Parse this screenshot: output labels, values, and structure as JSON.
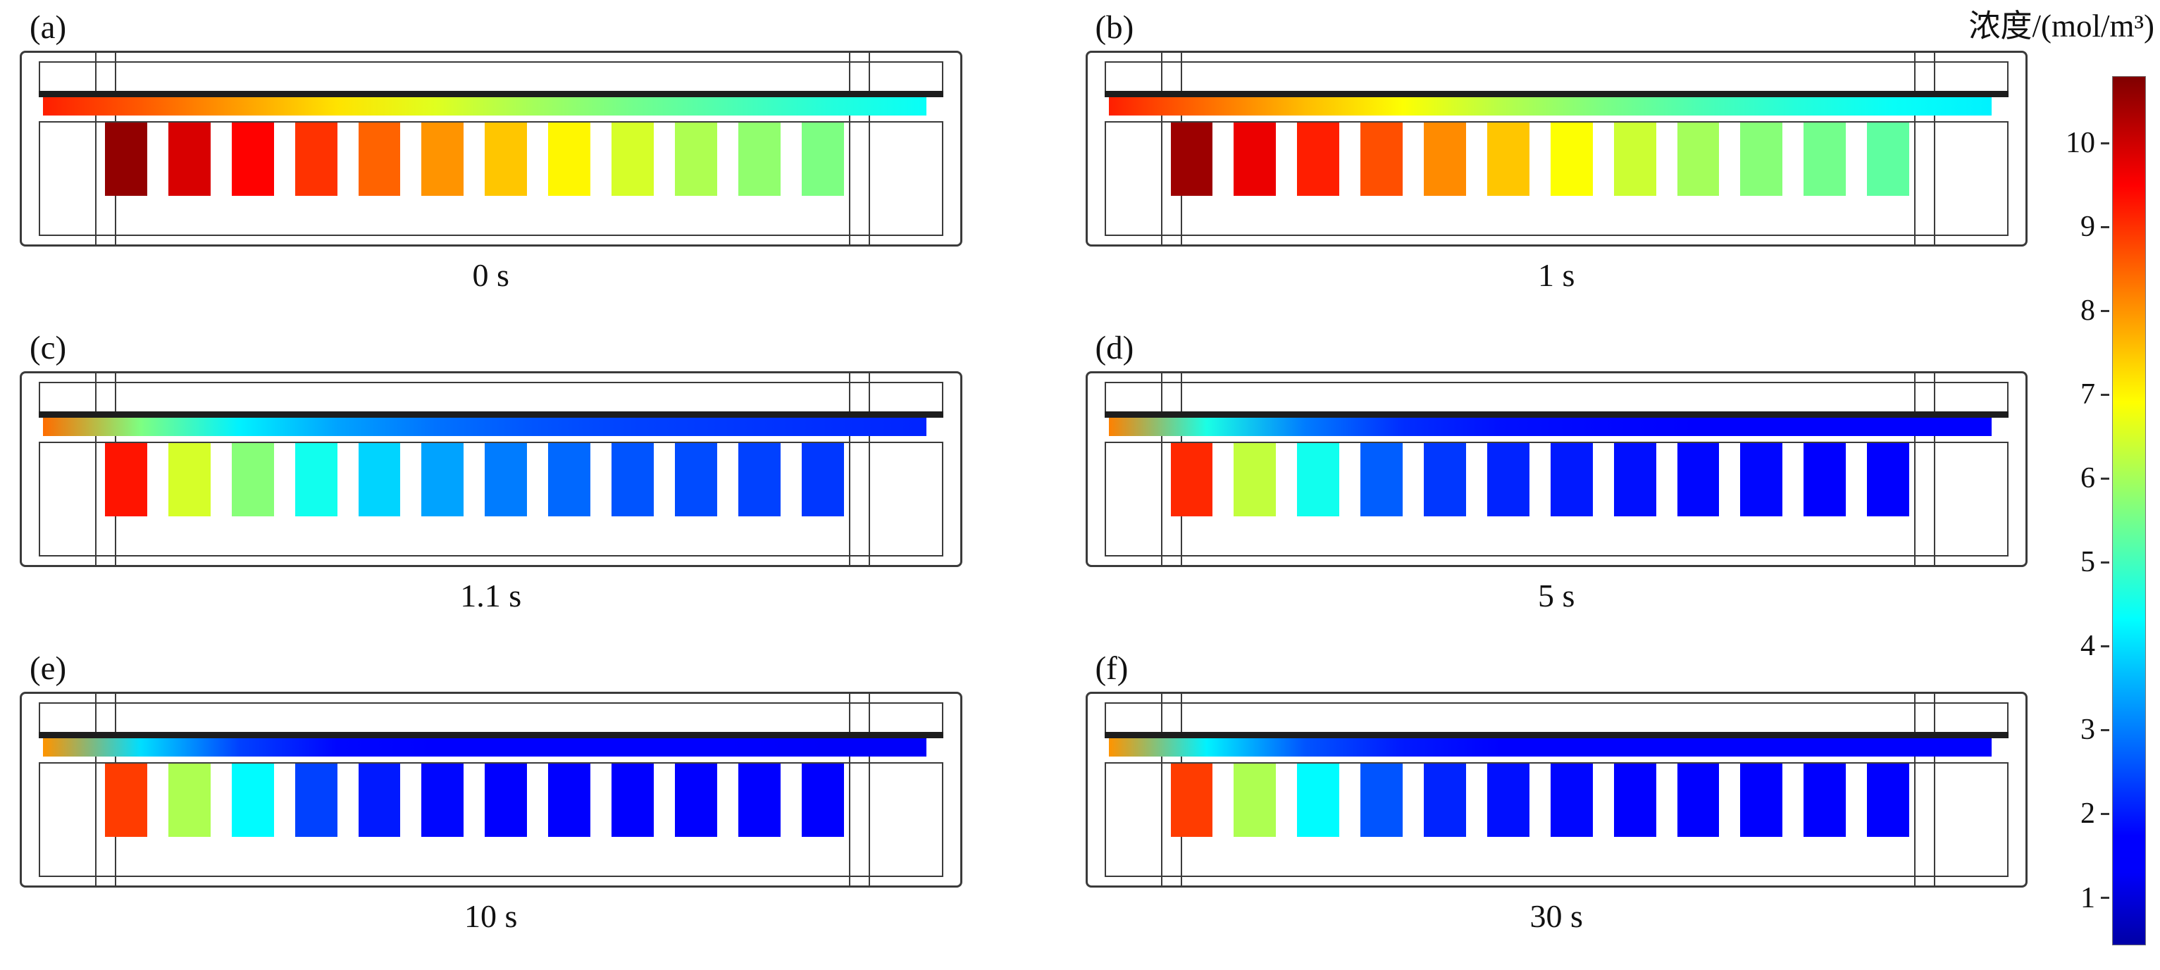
{
  "chart_data": {
    "type": "heatmap",
    "colormap": "jet",
    "title": "",
    "colorbar_label": "浓度/(mol/m³)",
    "colorbar_ticks": [
      1,
      2,
      3,
      4,
      5,
      6,
      7,
      8,
      9,
      10
    ],
    "value_range": [
      0.45,
      10.8
    ],
    "legend_position": "right",
    "panels": [
      {
        "label": "(a)",
        "time": "0 s",
        "block_concentrations": [
          10.6,
          9.9,
          9.5,
          9.0,
          8.5,
          8.0,
          7.5,
          7.0,
          6.5,
          6.1,
          5.8,
          5.6
        ],
        "channel_concentrations": [
          9.2,
          8.6,
          7.9,
          7.2,
          6.6,
          6.0,
          5.5,
          5.1,
          4.7,
          4.4
        ]
      },
      {
        "label": "(b)",
        "time": "1 s",
        "block_concentrations": [
          10.5,
          9.7,
          9.2,
          8.7,
          8.1,
          7.5,
          6.9,
          6.4,
          6.0,
          5.7,
          5.5,
          5.3
        ],
        "channel_concentrations": [
          9.2,
          8.4,
          7.6,
          6.9,
          6.2,
          5.6,
          5.1,
          4.7,
          4.4,
          4.2
        ]
      },
      {
        "label": "(c)",
        "time": "1.1 s",
        "block_concentrations": [
          9.3,
          6.5,
          5.7,
          4.5,
          3.9,
          3.4,
          3.0,
          2.8,
          2.6,
          2.5,
          2.4,
          2.3
        ],
        "channel_concentrations": [
          8.4,
          5.6,
          4.2,
          3.4,
          2.9,
          2.6,
          2.4,
          2.3,
          2.2,
          2.1
        ]
      },
      {
        "label": "(d)",
        "time": "5 s",
        "block_concentrations": [
          9.1,
          6.3,
          4.5,
          2.7,
          2.3,
          2.1,
          2.0,
          1.9,
          1.8,
          1.8,
          1.7,
          1.7
        ],
        "channel_concentrations": [
          8.2,
          4.6,
          3.0,
          2.2,
          1.9,
          1.8,
          1.7,
          1.6,
          1.6,
          1.5
        ]
      },
      {
        "label": "(e)",
        "time": "10 s",
        "block_concentrations": [
          8.9,
          6.1,
          4.3,
          2.4,
          2.0,
          1.8,
          1.7,
          1.6,
          1.5,
          1.5,
          1.4,
          1.4
        ],
        "channel_concentrations": [
          8.0,
          4.0,
          2.4,
          1.8,
          1.6,
          1.5,
          1.4,
          1.4,
          1.3,
          1.3
        ]
      },
      {
        "label": "(f)",
        "time": "30 s",
        "block_concentrations": [
          8.9,
          6.1,
          4.3,
          2.6,
          2.1,
          1.9,
          1.8,
          1.7,
          1.6,
          1.6,
          1.5,
          1.5
        ],
        "channel_concentrations": [
          8.0,
          4.2,
          2.6,
          2.0,
          1.7,
          1.6,
          1.5,
          1.5,
          1.4,
          1.4
        ]
      }
    ]
  }
}
